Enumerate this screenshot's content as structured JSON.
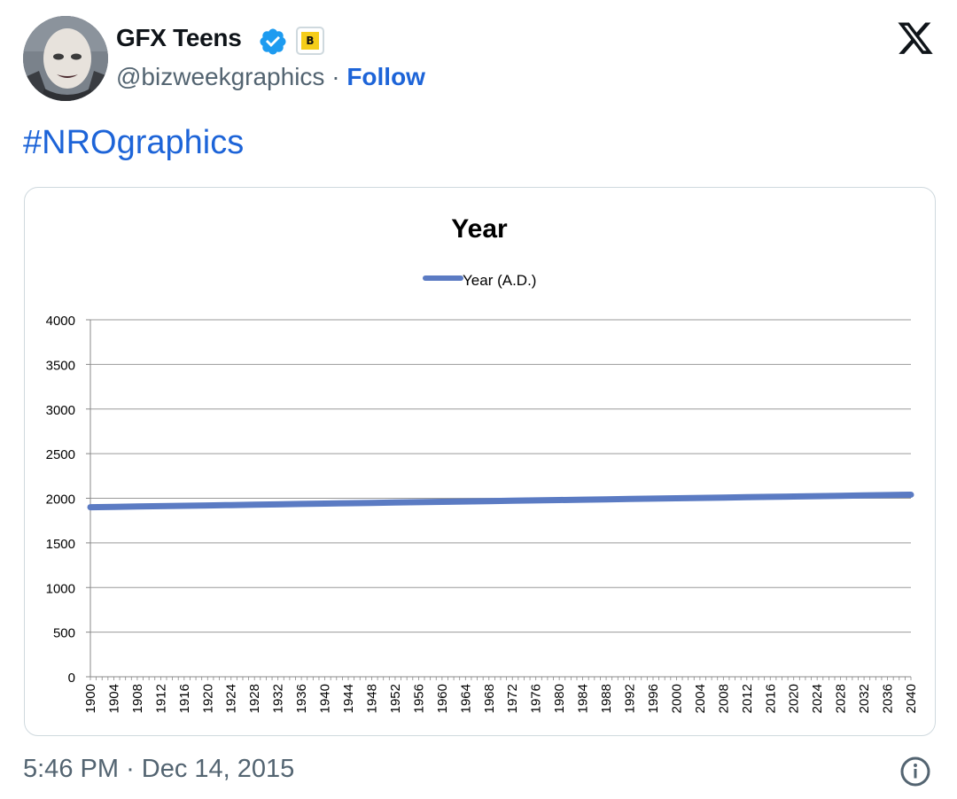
{
  "tweet": {
    "author": {
      "display_name": "GFX Teens",
      "handle": "@bizweekgraphics",
      "separator": "·",
      "follow_label": "Follow",
      "verified_icon": "verified-badge-icon",
      "affiliate_badge_letter": "B"
    },
    "platform_icon": "x-logo-icon",
    "text": "#NROgraphics",
    "time": "5:46 PM",
    "date_separator": "·",
    "date": "Dec 14, 2015",
    "info_icon": "info-icon",
    "colors": {
      "link": "#1d64d8",
      "muted": "#536471",
      "verified": "#1d9bf0",
      "badge": "#f5cd19",
      "series_line": "#5b7bc3"
    }
  },
  "chart_data": {
    "type": "line",
    "title": "Year",
    "xlabel": "",
    "ylabel": "",
    "legend": {
      "position": "top-center",
      "entries": [
        "Year (A.D.)"
      ]
    },
    "grid": true,
    "ylim": [
      0,
      4000
    ],
    "yticks": [
      0,
      500,
      1000,
      1500,
      2000,
      2500,
      3000,
      3500,
      4000
    ],
    "xlim": [
      1900,
      2040
    ],
    "xtick_labels": [
      "1900",
      "1904",
      "1908",
      "1912",
      "1916",
      "1920",
      "1924",
      "1928",
      "1932",
      "1936",
      "1940",
      "1944",
      "1948",
      "1952",
      "1956",
      "1960",
      "1964",
      "1968",
      "1972",
      "1976",
      "1980",
      "1984",
      "1988",
      "1992",
      "1996",
      "2000",
      "2004",
      "2008",
      "2012",
      "2016",
      "2020",
      "2024",
      "2028",
      "2032",
      "2036",
      "2040"
    ],
    "series": [
      {
        "name": "Year (A.D.)",
        "x": [
          1900,
          1904,
          1908,
          1912,
          1916,
          1920,
          1924,
          1928,
          1932,
          1936,
          1940,
          1944,
          1948,
          1952,
          1956,
          1960,
          1964,
          1968,
          1972,
          1976,
          1980,
          1984,
          1988,
          1992,
          1996,
          2000,
          2004,
          2008,
          2012,
          2016,
          2020,
          2024,
          2028,
          2032,
          2036,
          2040
        ],
        "y": [
          1900,
          1904,
          1908,
          1912,
          1916,
          1920,
          1924,
          1928,
          1932,
          1936,
          1940,
          1944,
          1948,
          1952,
          1956,
          1960,
          1964,
          1968,
          1972,
          1976,
          1980,
          1984,
          1988,
          1992,
          1996,
          2000,
          2004,
          2008,
          2012,
          2016,
          2020,
          2024,
          2028,
          2032,
          2036,
          2040
        ]
      }
    ]
  }
}
